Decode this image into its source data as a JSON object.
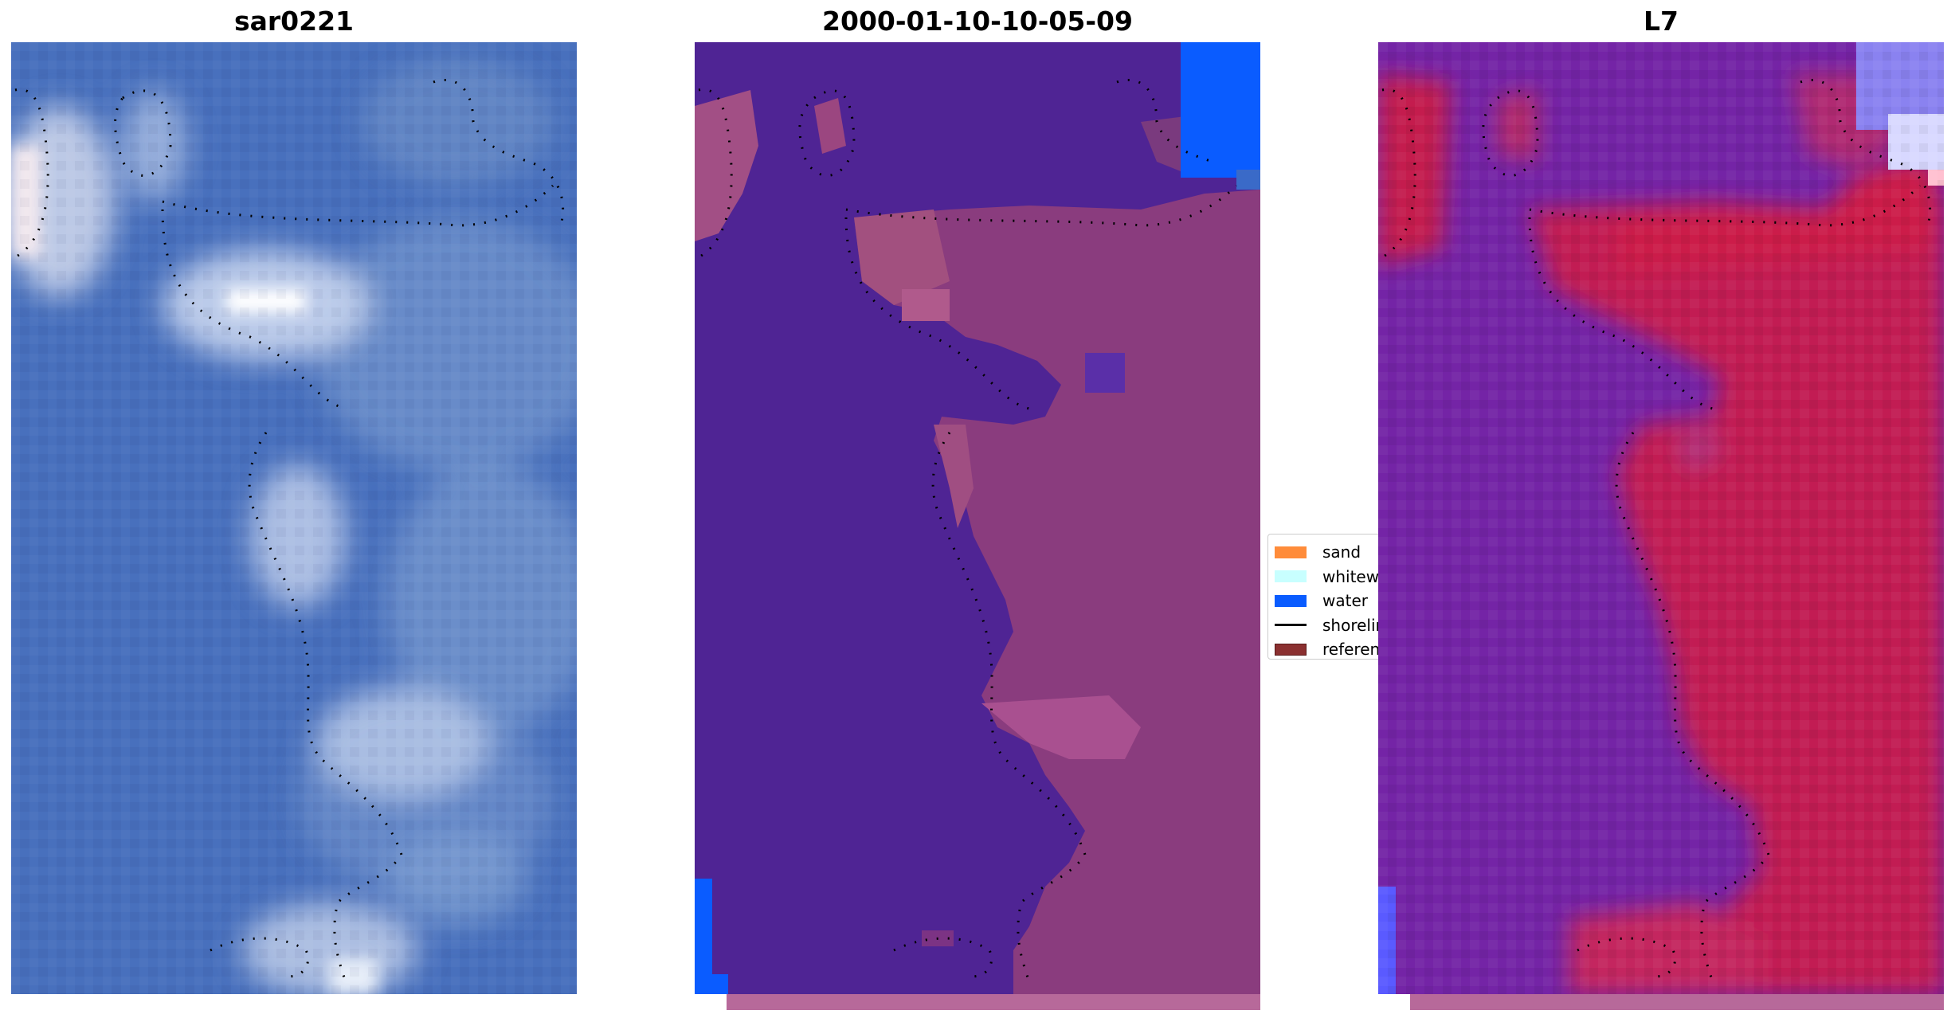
{
  "panels": [
    {
      "title": "sar0221"
    },
    {
      "title": "2000-01-10-10-05-09"
    },
    {
      "title": "L7"
    }
  ],
  "legend": {
    "items": [
      {
        "label": "sand",
        "color": "#ff8c3a",
        "type": "patch"
      },
      {
        "label": "whitewater",
        "color": "#c8ffff",
        "type": "patch"
      },
      {
        "label": "water",
        "color": "#0a5cff",
        "type": "patch"
      },
      {
        "label": "shoreline",
        "color": "#000000",
        "type": "line"
      },
      {
        "label": "reference",
        "color": "#8b3030",
        "type": "patch"
      }
    ]
  },
  "colors": {
    "rgb_water": "#4a72c0",
    "rgb_cloud": "#dfe6f3",
    "classified_water_fill": "#4f2494",
    "classified_land": "#8a3c7e",
    "classified_water_class": "#0a5cff",
    "index_low": "#6a1aa8",
    "index_high": "#c81848"
  }
}
